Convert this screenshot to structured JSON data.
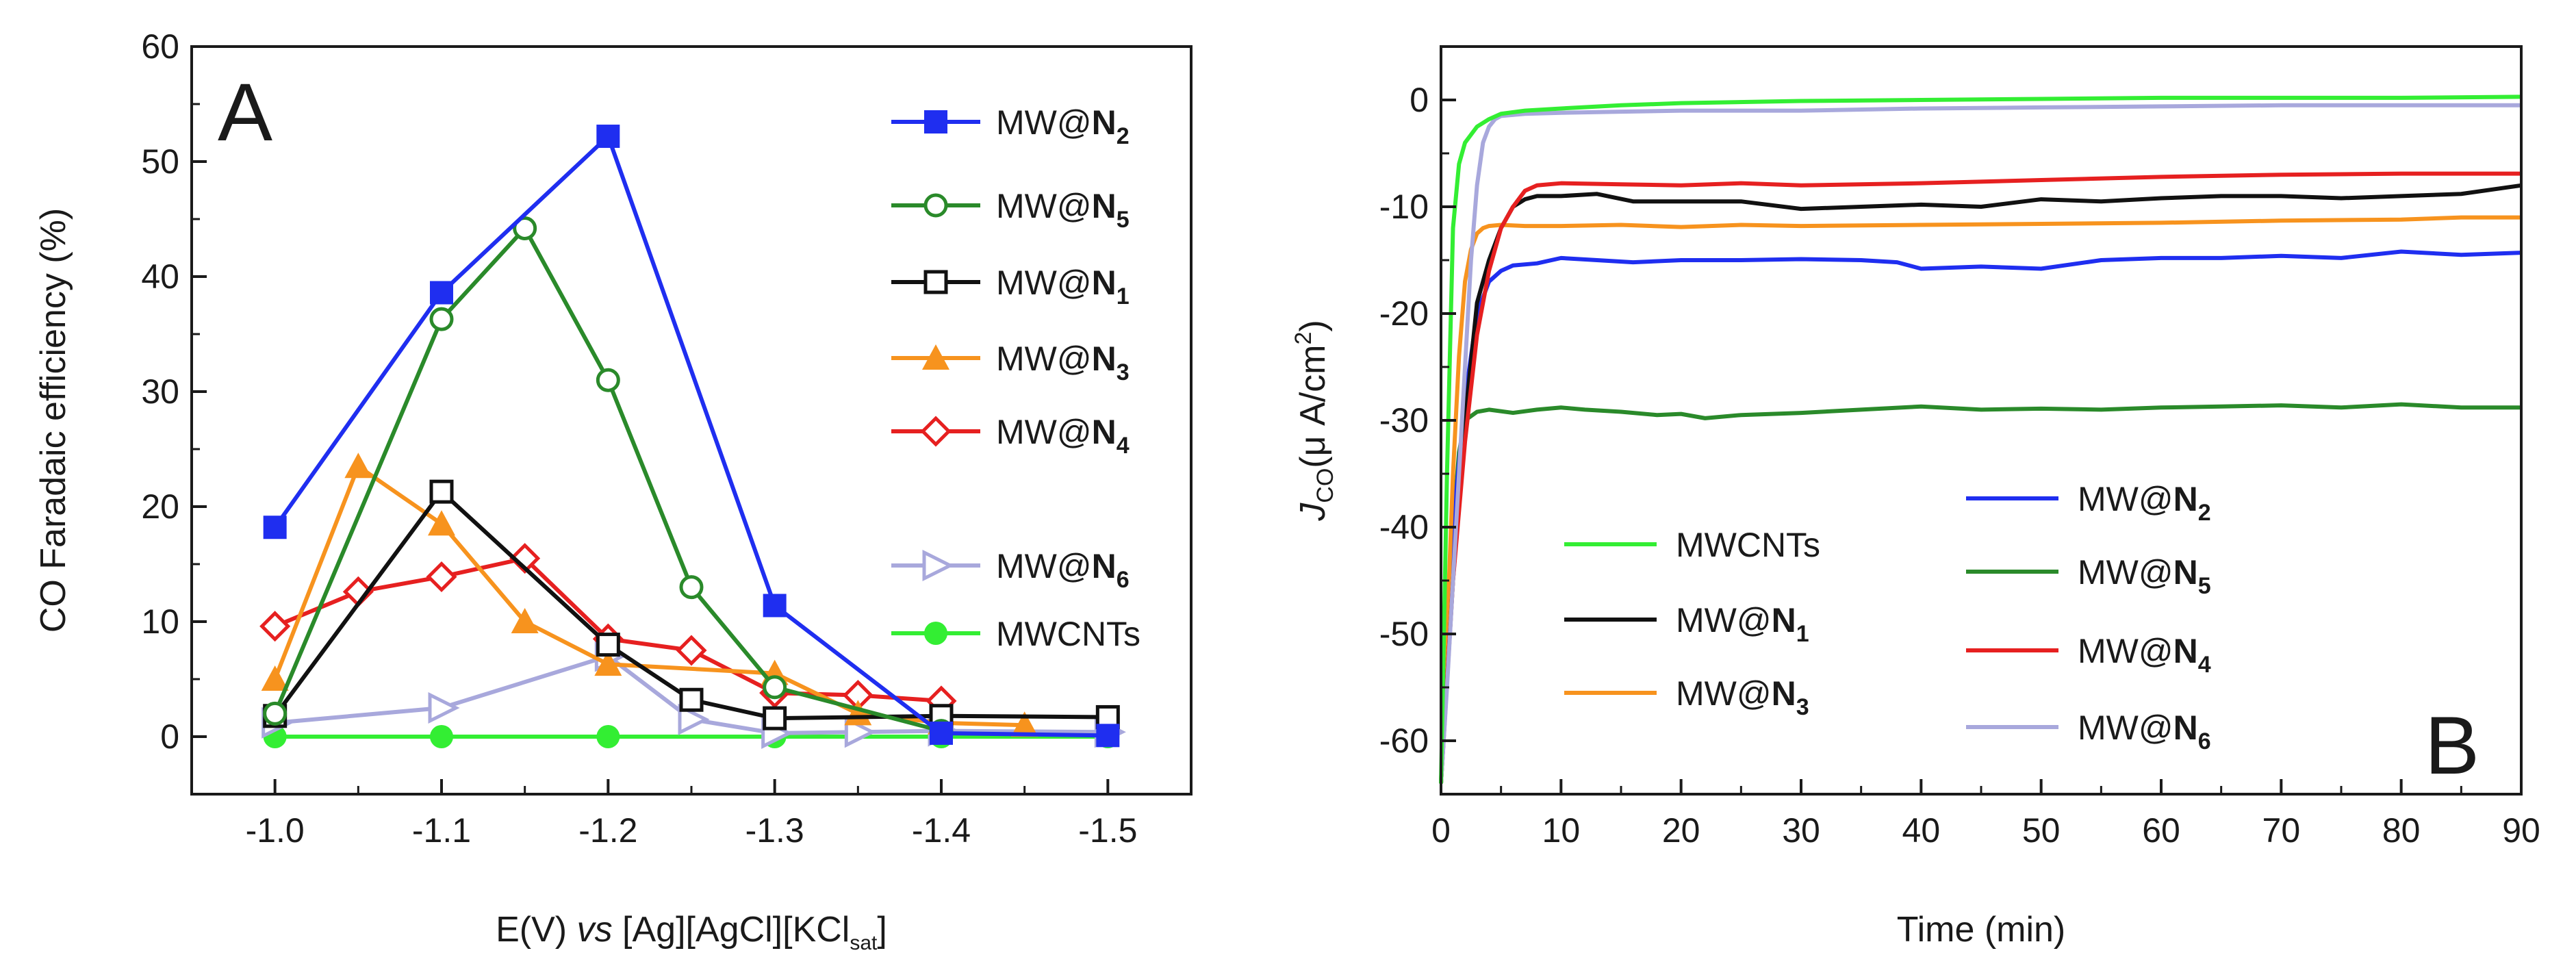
{
  "figure": {
    "panel_left_letter": "A",
    "panel_right_letter": "B"
  },
  "chart_data": [
    {
      "type": "line",
      "panel": "A",
      "xlabel": {
        "main": "E(V) ",
        "italic": "vs",
        "rest": " [Ag][AgCl][KCl",
        "sub": "sat",
        "close": "]"
      },
      "ylabel": "CO Faradaic efficiency (%)",
      "xlim": [
        -0.95,
        -1.55
      ],
      "ylim": [
        -5,
        60
      ],
      "x_ticks": [
        -1.0,
        -1.1,
        -1.2,
        -1.3,
        -1.4,
        -1.5
      ],
      "x_tick_labels": [
        "-1.0",
        "-1.1",
        "-1.2",
        "-1.3",
        "-1.4",
        "-1.5"
      ],
      "y_ticks": [
        0,
        10,
        20,
        30,
        40,
        50,
        60
      ],
      "y_tick_labels": [
        "0",
        "10",
        "20",
        "30",
        "40",
        "50",
        "60"
      ],
      "series": [
        {
          "name": "MW@N2",
          "label_main": "MW@",
          "label_bold": "N",
          "label_sub": "2",
          "color": "#1f2ef0",
          "marker": "square-filled",
          "x": [
            -1.0,
            -1.1,
            -1.2,
            -1.3,
            -1.4,
            -1.5
          ],
          "y": [
            18.2,
            38.6,
            52.2,
            11.4,
            0.3,
            0.1
          ]
        },
        {
          "name": "MW@N5",
          "label_main": "MW@",
          "label_bold": "N",
          "label_sub": "5",
          "color": "#2a8a2a",
          "marker": "circle-open",
          "x": [
            -1.0,
            -1.1,
            -1.15,
            -1.2,
            -1.25,
            -1.3,
            -1.4
          ],
          "y": [
            2.0,
            36.3,
            44.2,
            31.0,
            13.0,
            4.3,
            0.5
          ]
        },
        {
          "name": "MW@N1",
          "label_main": "MW@",
          "label_bold": "N",
          "label_sub": "1",
          "color": "#111111",
          "marker": "square-open",
          "x": [
            -1.0,
            -1.1,
            -1.2,
            -1.25,
            -1.3,
            -1.4,
            -1.5
          ],
          "y": [
            1.8,
            21.3,
            8.0,
            3.2,
            1.6,
            1.8,
            1.7
          ]
        },
        {
          "name": "MW@N3",
          "label_main": "MW@",
          "label_bold": "N",
          "label_sub": "3",
          "color": "#f7931e",
          "marker": "triangle-filled",
          "x": [
            -1.0,
            -1.05,
            -1.1,
            -1.15,
            -1.2,
            -1.3,
            -1.35,
            -1.4,
            -1.45
          ],
          "y": [
            5.0,
            23.5,
            18.5,
            10.0,
            6.3,
            5.5,
            2.0,
            1.2,
            1.0
          ]
        },
        {
          "name": "MW@N4",
          "label_main": "MW@",
          "label_bold": "N",
          "label_sub": "4",
          "color": "#e62020",
          "marker": "diamond-open",
          "x": [
            -1.0,
            -1.05,
            -1.1,
            -1.15,
            -1.2,
            -1.25,
            -1.3,
            -1.35,
            -1.4
          ],
          "y": [
            9.6,
            12.6,
            13.9,
            15.5,
            8.5,
            7.5,
            3.8,
            3.6,
            3.1
          ]
        },
        {
          "name": "MW@N6",
          "label_main": "MW@",
          "label_bold": "N",
          "label_sub": "6",
          "color": "#a8a8dc",
          "marker": "triangle-right-open",
          "x": [
            -1.0,
            -1.1,
            -1.2,
            -1.25,
            -1.3,
            -1.35,
            -1.4,
            -1.5
          ],
          "y": [
            1.2,
            2.5,
            7.0,
            1.5,
            0.3,
            0.4,
            0.5,
            0.4
          ]
        },
        {
          "name": "MWCNTs",
          "label_main": "MWCNTs",
          "label_bold": "",
          "label_sub": "",
          "color": "#33ee33",
          "marker": "circle-filled",
          "x": [
            -1.0,
            -1.1,
            -1.2,
            -1.3,
            -1.4,
            -1.5
          ],
          "y": [
            0,
            0,
            0,
            0,
            0,
            0
          ]
        }
      ],
      "legend_order": [
        0,
        1,
        2,
        3,
        4,
        5,
        6
      ],
      "legend": "top-right"
    },
    {
      "type": "line",
      "panel": "B",
      "xlabel": "Time (min)",
      "ylabel": {
        "italic": "J",
        "sub": "CO",
        "rest": "(μ A/cm",
        "sup": "2",
        "close": ")"
      },
      "xlim": [
        0,
        90
      ],
      "ylim": [
        -65,
        5
      ],
      "x_ticks": [
        0,
        10,
        20,
        30,
        40,
        50,
        60,
        70,
        80,
        90
      ],
      "x_tick_labels": [
        "0",
        "10",
        "20",
        "30",
        "40",
        "50",
        "60",
        "70",
        "80",
        "90"
      ],
      "y_ticks": [
        0,
        -10,
        -20,
        -30,
        -40,
        -50,
        -60
      ],
      "y_tick_labels": [
        "0",
        "-10",
        "-20",
        "-30",
        "-40",
        "-50",
        "-60"
      ],
      "series": [
        {
          "name": "MWCNTs",
          "label_main": "MWCNTs",
          "label_bold": "",
          "label_sub": "",
          "color": "#33ee33",
          "x": [
            0,
            0.5,
            1,
            1.5,
            2,
            3,
            4,
            5,
            7,
            10,
            15,
            20,
            30,
            40,
            50,
            60,
            70,
            80,
            90
          ],
          "y": [
            -64,
            -35,
            -12,
            -6,
            -4,
            -2.5,
            -1.8,
            -1.3,
            -1.0,
            -0.8,
            -0.5,
            -0.3,
            -0.1,
            0,
            0.1,
            0.2,
            0.2,
            0.2,
            0.3
          ]
        },
        {
          "name": "MW@N1",
          "label_main": "MW@",
          "label_bold": "N",
          "label_sub": "1",
          "color": "#111111",
          "x": [
            0,
            1,
            2,
            3,
            4,
            5,
            6,
            7,
            8,
            10,
            13,
            16,
            20,
            25,
            30,
            35,
            40,
            45,
            50,
            55,
            60,
            65,
            70,
            75,
            80,
            85,
            90
          ],
          "y": [
            -64,
            -45,
            -30,
            -19,
            -15,
            -12,
            -10,
            -9.3,
            -9.0,
            -9.0,
            -8.8,
            -9.5,
            -9.5,
            -9.5,
            -10.2,
            -10.0,
            -9.8,
            -10.0,
            -9.3,
            -9.5,
            -9.2,
            -9.0,
            -9.0,
            -9.2,
            -9.0,
            -8.8,
            -8.0
          ]
        },
        {
          "name": "MW@N3",
          "label_main": "MW@",
          "label_bold": "N",
          "label_sub": "3",
          "color": "#f7931e",
          "x": [
            0,
            0.5,
            1,
            1.5,
            2,
            2.5,
            3,
            3.5,
            4,
            5,
            7,
            10,
            15,
            20,
            25,
            30,
            40,
            50,
            60,
            70,
            80,
            85,
            90
          ],
          "y": [
            -64,
            -50,
            -35,
            -24,
            -17,
            -14,
            -12.5,
            -12,
            -11.8,
            -11.7,
            -11.8,
            -11.8,
            -11.7,
            -11.9,
            -11.7,
            -11.8,
            -11.7,
            -11.6,
            -11.5,
            -11.3,
            -11.2,
            -11.0,
            -11.0
          ]
        },
        {
          "name": "MW@N2",
          "label_main": "MW@",
          "label_bold": "N",
          "label_sub": "2",
          "color": "#1f2ef0",
          "x": [
            0,
            1,
            2,
            3,
            4,
            5,
            6,
            8,
            10,
            13,
            16,
            20,
            25,
            30,
            35,
            38,
            40,
            45,
            50,
            55,
            60,
            65,
            70,
            75,
            80,
            85,
            90
          ],
          "y": [
            -64,
            -40,
            -28,
            -20,
            -17,
            -16,
            -15.5,
            -15.3,
            -14.8,
            -15.0,
            -15.2,
            -15.0,
            -15.0,
            -14.9,
            -15.0,
            -15.2,
            -15.8,
            -15.6,
            -15.8,
            -15.0,
            -14.8,
            -14.8,
            -14.6,
            -14.8,
            -14.2,
            -14.5,
            -14.3
          ]
        },
        {
          "name": "MW@N5",
          "label_main": "MW@",
          "label_bold": "N",
          "label_sub": "5",
          "color": "#2a8a2a",
          "x": [
            0,
            0.5,
            1,
            1.5,
            2,
            3,
            4,
            6,
            8,
            10,
            12,
            15,
            18,
            20,
            22,
            25,
            30,
            35,
            40,
            45,
            50,
            55,
            60,
            65,
            70,
            75,
            80,
            85,
            90
          ],
          "y": [
            -64,
            -50,
            -40,
            -33,
            -30,
            -29.2,
            -29,
            -29.3,
            -29,
            -28.8,
            -29,
            -29.2,
            -29.5,
            -29.4,
            -29.8,
            -29.5,
            -29.3,
            -29.0,
            -28.7,
            -29.0,
            -28.9,
            -29.0,
            -28.8,
            -28.7,
            -28.6,
            -28.8,
            -28.5,
            -28.8,
            -28.8
          ]
        },
        {
          "name": "MW@N4",
          "label_main": "MW@",
          "label_bold": "N",
          "label_sub": "4",
          "color": "#e62020",
          "x": [
            0,
            1,
            2,
            3,
            4,
            5,
            6,
            7,
            8,
            10,
            15,
            20,
            25,
            30,
            40,
            50,
            60,
            70,
            80,
            90
          ],
          "y": [
            -64,
            -45,
            -32,
            -22,
            -16,
            -12,
            -10,
            -8.5,
            -8.0,
            -7.8,
            -7.9,
            -8.0,
            -7.8,
            -8.0,
            -7.8,
            -7.5,
            -7.2,
            -7.0,
            -6.9,
            -6.9
          ]
        },
        {
          "name": "MW@N6",
          "label_main": "MW@",
          "label_bold": "N",
          "label_sub": "6",
          "color": "#a8a8dc",
          "x": [
            0,
            0.5,
            1,
            1.5,
            2,
            2.5,
            3,
            3.5,
            4,
            4.5,
            5,
            7,
            10,
            15,
            20,
            30,
            40,
            50,
            60,
            70,
            80,
            90
          ],
          "y": [
            -64,
            -55,
            -45,
            -35,
            -25,
            -15,
            -8,
            -4,
            -2.5,
            -1.8,
            -1.5,
            -1.3,
            -1.2,
            -1.1,
            -1.0,
            -1.0,
            -0.8,
            -0.7,
            -0.6,
            -0.5,
            -0.5,
            -0.5
          ]
        }
      ],
      "legend_left_order": [
        0,
        1,
        2
      ],
      "legend_right_order": [
        3,
        4,
        5,
        6
      ],
      "legend": "lower-left"
    }
  ]
}
